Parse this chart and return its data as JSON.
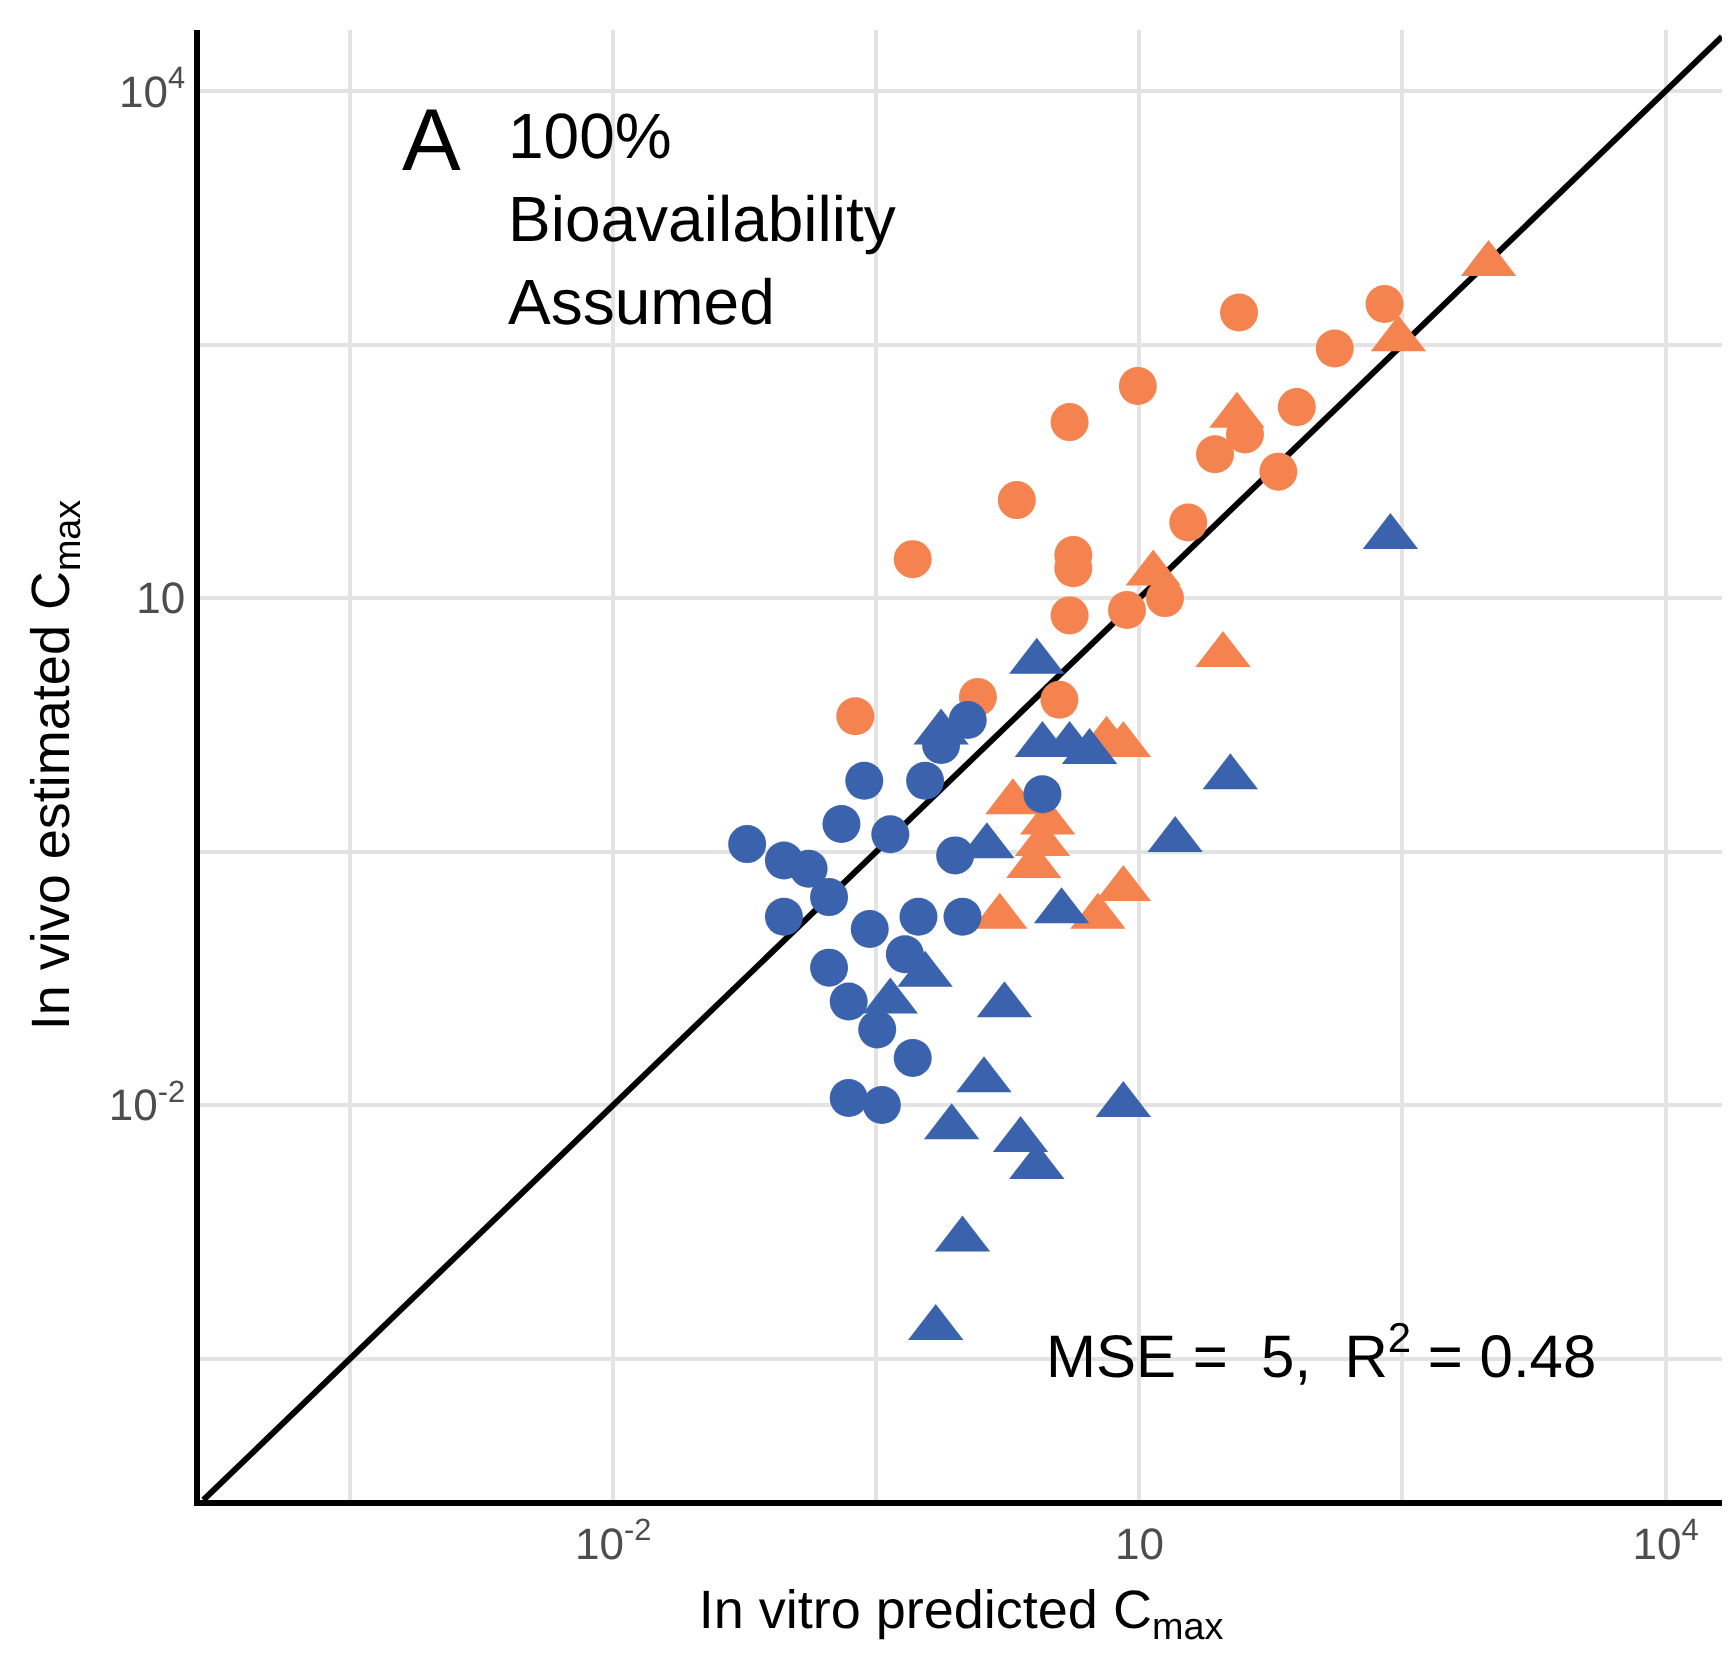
{
  "chart_data": {
    "type": "scatter",
    "xlabel": "In vitro predicted C$_{max}$",
    "ylabel": "In vivo estimated C$_{max}$",
    "log": "xy",
    "grid": true,
    "xlim": [
      4.4e-05,
      21000
    ],
    "ylim": [
      4.6e-05,
      23000
    ],
    "xticks": [
      {
        "value": 0.000316,
        "label": null
      },
      {
        "value": 0.01,
        "label": "10$^{-2}$"
      },
      {
        "value": 0.316,
        "label": null
      },
      10,
      {
        "value": 316,
        "label": null
      },
      {
        "value": 10000,
        "label": "10$^{4}$"
      }
    ],
    "yticks": [
      {
        "value": 0.000316,
        "label": null
      },
      {
        "value": 0.01,
        "label": "10$^{-2}$"
      },
      {
        "value": 0.316,
        "label": null
      },
      10,
      {
        "value": 316,
        "label": null
      },
      {
        "value": 10000,
        "label": "10$^{4}$"
      }
    ],
    "annotations": [
      "A",
      "100%\nBioavailability\nAssumed",
      "MSE =  5,  R$^{2}$ = 0.48"
    ],
    "series": [
      {
        "type": "line",
        "color": "#000000",
        "marker": "none",
        "line_style": "solid",
        "x": [
          4.6e-05,
          21000
        ],
        "values": [
          4.6e-05,
          21000
        ]
      },
      {
        "color": "#f4834f",
        "marker": "circle",
        "x": [
          0.51,
          2.0,
          4.0,
          9.8,
          37,
          250,
          130,
          79,
          40,
          27,
          62,
          19,
          4.2,
          4.2,
          4.0,
          8.5,
          14,
          1.2,
          0.24,
          3.5
        ],
        "values": [
          17,
          38,
          110,
          180,
          490,
          550,
          300,
          135,
          93,
          71,
          56,
          28,
          18,
          15,
          7.9,
          8.5,
          10,
          2.6,
          2.0,
          2.5
        ]
      },
      {
        "color": "#f4834f",
        "marker": "triangle",
        "x": [
          980,
          300,
          30,
          12,
          36,
          8.1,
          6.5,
          2.8,
          8.1,
          1.6,
          5.8,
          3.0,
          2.5,
          1.9
        ],
        "values": [
          950,
          340,
          4.6,
          14,
          120,
          1.35,
          1.45,
          0.35,
          0.19,
          0.13,
          0.13,
          0.47,
          0.26,
          0.62
        ]
      },
      {
        "color": "#3a62ad",
        "marker": "circle",
        "x": [
          0.058,
          0.094,
          0.27,
          0.2,
          0.38,
          0.094,
          0.17,
          0.29,
          0.89,
          0.98,
          0.17,
          0.22,
          0.32,
          0.51,
          0.22,
          0.34,
          1.05,
          0.74,
          0.6,
          2.8,
          0.55,
          0.46,
          0.13
        ],
        "values": [
          0.35,
          0.28,
          0.83,
          0.46,
          0.4,
          0.13,
          0.17,
          0.11,
          0.3,
          0.13,
          0.065,
          0.041,
          0.028,
          0.019,
          0.011,
          0.01,
          1.9,
          1.35,
          0.83,
          0.69,
          0.13,
          0.078,
          0.25
        ]
      },
      {
        "color": "#3a62ad",
        "marker": "triangle",
        "x": [
          2.6,
          0.74,
          2.8,
          4.0,
          5.2,
          33,
          16,
          1.35,
          3.6,
          0.6,
          1.7,
          0.38,
          1.3,
          8.1,
          0.85,
          2.1,
          2.6,
          0.98,
          0.69,
          270
        ],
        "values": [
          4.2,
          1.6,
          1.35,
          1.35,
          1.23,
          0.87,
          0.37,
          0.34,
          0.14,
          0.059,
          0.039,
          0.041,
          0.014,
          0.01,
          0.0074,
          0.0062,
          0.0043,
          0.0016,
          0.00048,
          23
        ]
      }
    ]
  }
}
